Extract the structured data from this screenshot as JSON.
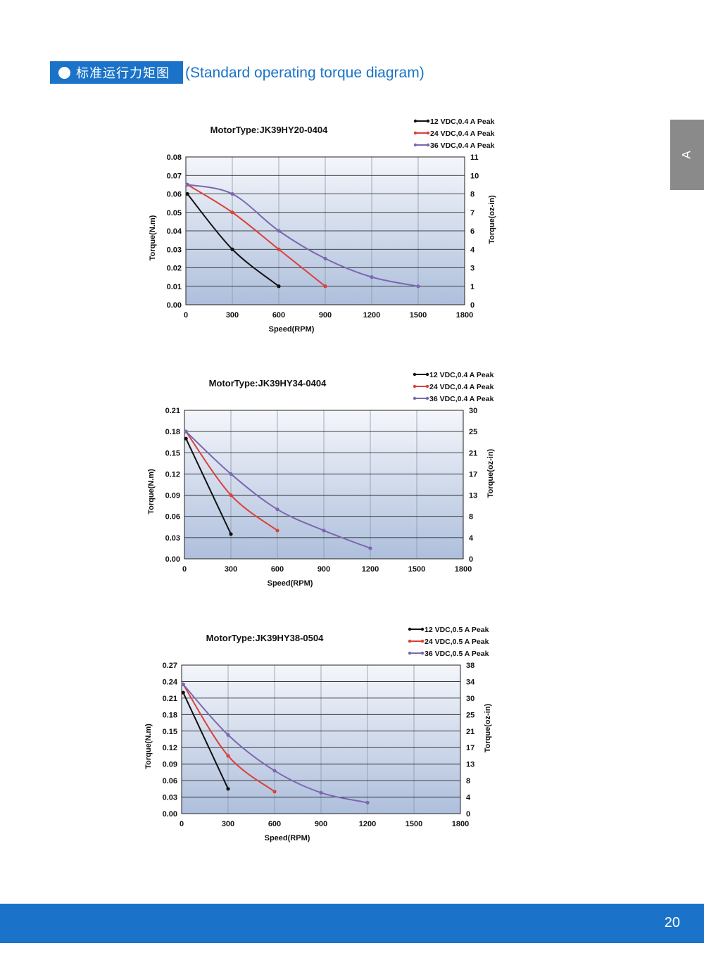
{
  "header": {
    "title_cn": "标准运行力矩图",
    "title_en": "(Standard operating torque diagram)"
  },
  "side_tab": {
    "label": "A"
  },
  "footer": {
    "page_number": "20"
  },
  "colors": {
    "accent": "#1a73c8",
    "side_tab": "#8a8a8a",
    "series_12v": "#111111",
    "series_24v": "#d9413a",
    "series_36v": "#7b68b0"
  },
  "chart_data": [
    {
      "type": "line",
      "title": "MotorType:JK39HY20-0404",
      "xlabel": "Speed(RPM)",
      "ylabel": "Torque(N.m)",
      "y2label": "Torque(oz-in)",
      "xlim": [
        0,
        1800
      ],
      "ylim": [
        0,
        0.08
      ],
      "x_ticks": [
        "0",
        "300",
        "600",
        "900",
        "1200",
        "1500",
        "1800"
      ],
      "y_ticks": [
        "0.00",
        "0.01",
        "0.02",
        "0.03",
        "0.04",
        "0.05",
        "0.06",
        "0.07",
        "0.08"
      ],
      "y2_ticks": [
        "0",
        "1",
        "3",
        "4",
        "6",
        "7",
        "8",
        "10",
        "11"
      ],
      "grid": true,
      "legend_position": "top-right",
      "series": [
        {
          "name": "12 VDC,0.4 A Peak",
          "color": "#111111",
          "x": [
            10,
            300,
            600
          ],
          "y": [
            0.06,
            0.03,
            0.01
          ]
        },
        {
          "name": "24 VDC,0.4 A Peak",
          "color": "#d9413a",
          "x": [
            10,
            300,
            600,
            900
          ],
          "y": [
            0.065,
            0.05,
            0.03,
            0.01
          ]
        },
        {
          "name": "36 VDC,0.4 A Peak",
          "color": "#7b68b0",
          "x": [
            10,
            300,
            600,
            900,
            1200,
            1500
          ],
          "y": [
            0.065,
            0.06,
            0.04,
            0.025,
            0.015,
            0.01
          ]
        }
      ]
    },
    {
      "type": "line",
      "title": "MotorType:JK39HY34-0404",
      "xlabel": "Speed(RPM)",
      "ylabel": "Torque(N.m)",
      "y2label": "Torque(oz-in)",
      "xlim": [
        0,
        1800
      ],
      "ylim": [
        0,
        0.21
      ],
      "x_ticks": [
        "0",
        "300",
        "600",
        "900",
        "1200",
        "1500",
        "1800"
      ],
      "y_ticks": [
        "0.00",
        "0.03",
        "0.06",
        "0.09",
        "0.12",
        "0.15",
        "0.18",
        "0.21"
      ],
      "y2_ticks": [
        "0",
        "4",
        "8",
        "13",
        "17",
        "21",
        "25",
        "30"
      ],
      "grid": true,
      "legend_position": "top-right",
      "series": [
        {
          "name": "12 VDC,0.4 A Peak",
          "color": "#111111",
          "x": [
            10,
            300
          ],
          "y": [
            0.17,
            0.035
          ]
        },
        {
          "name": "24 VDC,0.4 A Peak",
          "color": "#d9413a",
          "x": [
            10,
            300,
            600
          ],
          "y": [
            0.18,
            0.09,
            0.04
          ]
        },
        {
          "name": "36 VDC,0.4 A Peak",
          "color": "#7b68b0",
          "x": [
            10,
            300,
            600,
            900,
            1200
          ],
          "y": [
            0.18,
            0.12,
            0.07,
            0.04,
            0.015
          ]
        }
      ]
    },
    {
      "type": "line",
      "title": "MotorType:JK39HY38-0504",
      "xlabel": "Speed(RPM)",
      "ylabel": "Torque(N.m)",
      "y2label": "Torque(oz-in)",
      "xlim": [
        0,
        1800
      ],
      "ylim": [
        0,
        0.27
      ],
      "x_ticks": [
        "0",
        "300",
        "600",
        "900",
        "1200",
        "1500",
        "1800"
      ],
      "y_ticks": [
        "0.00",
        "0.03",
        "0.06",
        "0.09",
        "0.12",
        "0.15",
        "0.18",
        "0.21",
        "0.24",
        "0.27"
      ],
      "y2_ticks": [
        "0",
        "4",
        "8",
        "13",
        "17",
        "21",
        "25",
        "30",
        "34",
        "38"
      ],
      "grid": true,
      "legend_position": "top-right",
      "series": [
        {
          "name": "12 VDC,0.5 A Peak",
          "color": "#111111",
          "x": [
            10,
            300
          ],
          "y": [
            0.22,
            0.045
          ]
        },
        {
          "name": "24 VDC,0.5 A Peak",
          "color": "#d9413a",
          "x": [
            10,
            300,
            600
          ],
          "y": [
            0.235,
            0.105,
            0.04
          ]
        },
        {
          "name": "36 VDC,0.5 A Peak",
          "color": "#7b68b0",
          "x": [
            10,
            300,
            600,
            900,
            1200
          ],
          "y": [
            0.235,
            0.143,
            0.078,
            0.038,
            0.02
          ]
        }
      ]
    }
  ]
}
